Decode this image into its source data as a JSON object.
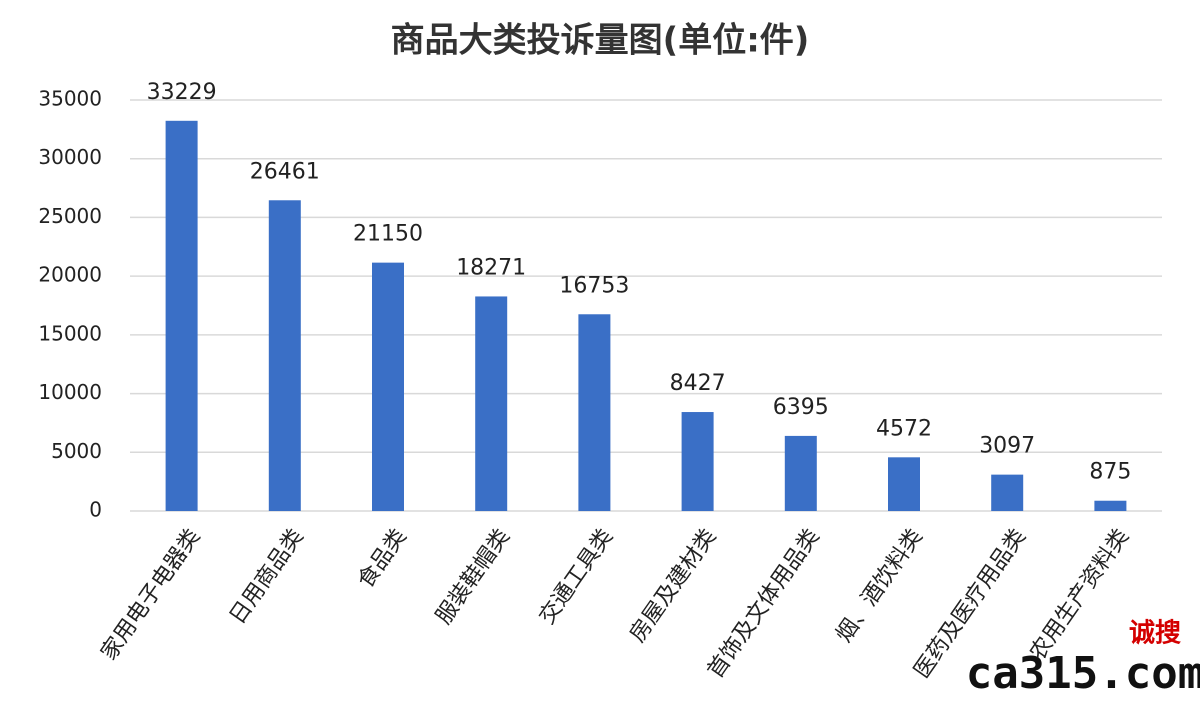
{
  "chart_data": {
    "type": "bar",
    "title": "商品大类投诉量图(单位:件)",
    "categories": [
      "家用电子电器类",
      "日用商品类",
      "食品类",
      "服装鞋帽类",
      "交通工具类",
      "房屋及建材类",
      "首饰及文体用品类",
      "烟、酒饮料类",
      "医药及医疗用品类",
      "农用生产资料类"
    ],
    "values": [
      33229,
      26461,
      21150,
      18271,
      16753,
      8427,
      6395,
      4572,
      3097,
      875
    ],
    "color": "#3a6fc6",
    "ylim": [
      0,
      35000
    ],
    "yticks": [
      0,
      5000,
      10000,
      15000,
      20000,
      25000,
      30000,
      35000
    ],
    "grid": true,
    "watermark": {
      "logo": "ca315.com",
      "brand": "诚搜"
    }
  }
}
